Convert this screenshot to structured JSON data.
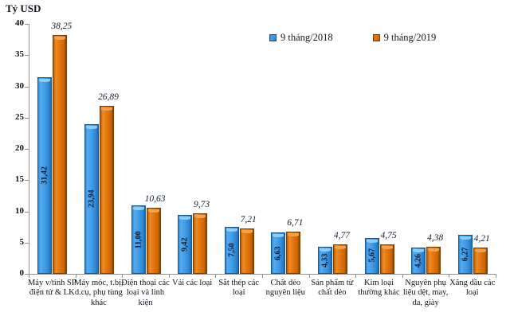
{
  "chart_data": {
    "type": "bar",
    "title": "",
    "ylabel": "Tỷ USD",
    "xlabel": "",
    "ylim": [
      0,
      40
    ],
    "yticks": [
      0,
      5,
      10,
      15,
      20,
      25,
      30,
      35,
      40
    ],
    "grid": false,
    "legend_position": "top-center",
    "decimal_style": "comma",
    "categories": [
      "Máy v/tính SP điện tử & LK",
      "Máy móc, t.bị, d.cụ, phụ tùng khác",
      "Điện thoại các loại và linh kiện",
      "Vải các loại",
      "Sắt thép các loại",
      "Chất dẻo nguyên liệu",
      "Sản phẩm từ chất dẻo",
      "Kim loại thường khác",
      "Nguyên phụ liệu dệt, may, da, giày",
      "Xăng dầu các loại"
    ],
    "series": [
      {
        "name": "9 tháng/2018",
        "color": "#3B9BE9",
        "values": [
          31.42,
          23.94,
          11.0,
          9.42,
          7.5,
          6.63,
          4.33,
          5.67,
          4.26,
          6.27
        ],
        "value_labels": [
          "31,42",
          "23,94",
          "11,00",
          "9,42",
          "7,50",
          "6,63",
          "4,33",
          "5,67",
          "4,26",
          "6,27"
        ],
        "label_placement": "inside-vertical"
      },
      {
        "name": "9 tháng/2019",
        "color": "#E0720C",
        "values": [
          38.25,
          26.89,
          10.63,
          9.73,
          7.21,
          6.71,
          4.77,
          4.75,
          4.38,
          4.21
        ],
        "value_labels": [
          "38,25",
          "26,89",
          "10,63",
          "9,73",
          "7,21",
          "6,71",
          "4,77",
          "4,75",
          "4,38",
          "4,21"
        ],
        "label_placement": "above-italic"
      }
    ],
    "axis_color": "#8F8F8F"
  }
}
